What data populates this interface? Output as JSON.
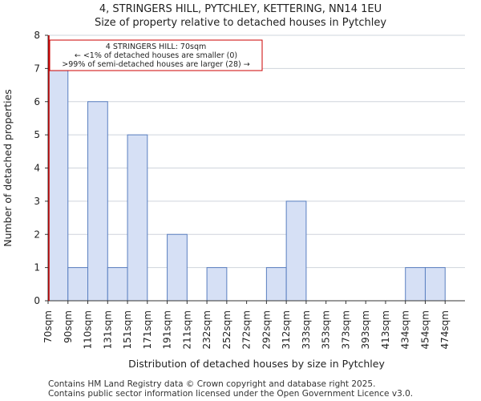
{
  "chart_data": {
    "type": "bar",
    "title": "4, STRINGERS HILL, PYTCHLEY, KETTERING, NN14 1EU",
    "subtitle": "Size of property relative to detached houses in Pytchley",
    "xlabel": "Distribution of detached houses by size in Pytchley",
    "ylabel": "Number of detached properties",
    "categories": [
      "70sqm",
      "90sqm",
      "110sqm",
      "131sqm",
      "151sqm",
      "171sqm",
      "191sqm",
      "211sqm",
      "232sqm",
      "252sqm",
      "272sqm",
      "292sqm",
      "312sqm",
      "333sqm",
      "353sqm",
      "373sqm",
      "393sqm",
      "413sqm",
      "434sqm",
      "454sqm",
      "474sqm"
    ],
    "values": [
      7,
      1,
      6,
      1,
      5,
      0,
      2,
      0,
      1,
      0,
      0,
      1,
      3,
      0,
      0,
      0,
      0,
      0,
      1,
      1,
      0
    ],
    "ylim": [
      0,
      8
    ],
    "yticks": [
      0,
      1,
      2,
      3,
      4,
      5,
      6,
      7,
      8
    ],
    "grid": true,
    "bar_color": "#d6e0f5",
    "bar_edge_color": "#5a7fc0",
    "marker_color": "#cc0000",
    "marker_category_index": 0,
    "annotation": {
      "lines": [
        "4 STRINGERS HILL: 70sqm",
        "← <1% of detached houses are smaller (0)",
        ">99% of semi-detached houses are larger (28) →"
      ]
    }
  },
  "footer": {
    "line1": "Contains HM Land Registry data © Crown copyright and database right 2025.",
    "line2": "Contains public sector information licensed under the Open Government Licence v3.0."
  }
}
